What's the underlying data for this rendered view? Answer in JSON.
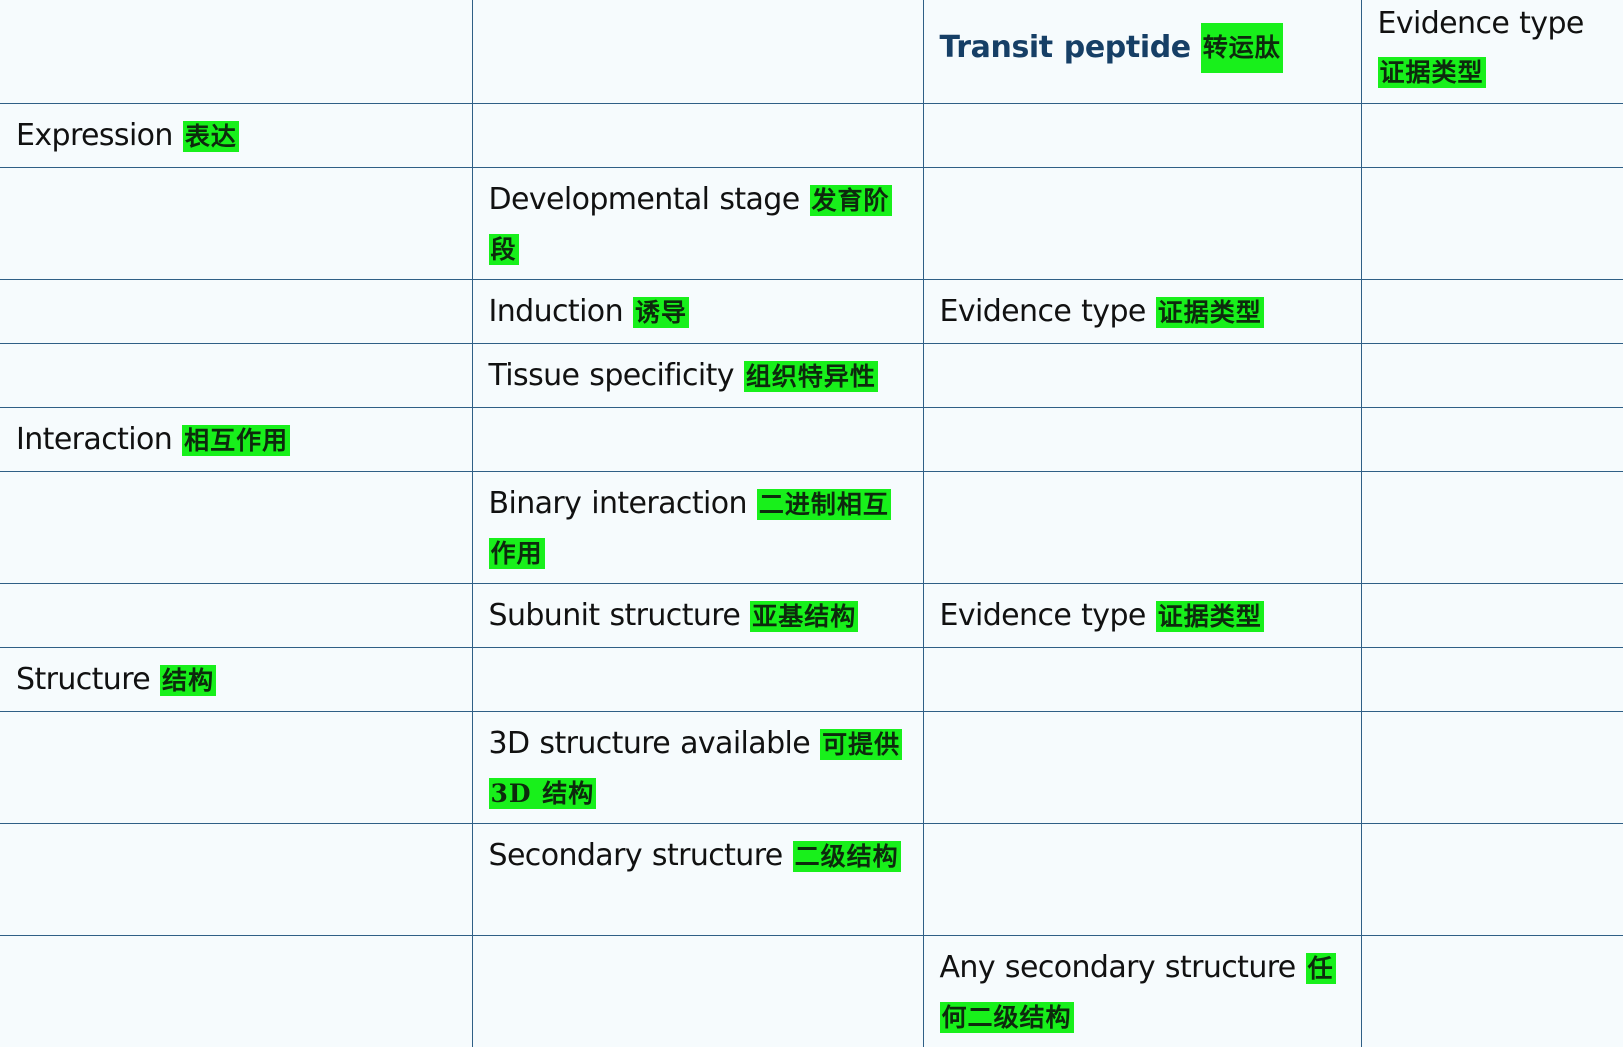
{
  "header": {
    "col3_en": "Transit peptide",
    "col3_zh": "转运肽",
    "col4_en": "Evidence type",
    "col4_zh": "证据类型"
  },
  "rows": {
    "expression": {
      "en": "Expression",
      "zh": "表达"
    },
    "developmental_stage": {
      "en": "Developmental stage",
      "zh": "发育阶段"
    },
    "induction": {
      "en": "Induction",
      "zh": "诱导"
    },
    "induction_evidence": {
      "en": "Evidence type",
      "zh": "证据类型"
    },
    "tissue_specificity": {
      "en": "Tissue specificity",
      "zh": "组织特异性"
    },
    "interaction": {
      "en": "Interaction",
      "zh": "相互作用"
    },
    "binary_interaction": {
      "en": "Binary interaction",
      "zh": "二进制相互作用"
    },
    "subunit_structure": {
      "en": "Subunit structure",
      "zh": "亚基结构"
    },
    "subunit_evidence": {
      "en": "Evidence type",
      "zh": "证据类型"
    },
    "structure": {
      "en": "Structure",
      "zh": "结构"
    },
    "structure_3d": {
      "en": "3D structure available",
      "zh": "可提供 3D 结构"
    },
    "secondary_structure": {
      "en": "Secondary structure",
      "zh": "二级结构"
    },
    "any_secondary_structure": {
      "en": "Any secondary structure",
      "zh": "任何二级结构"
    }
  },
  "colors": {
    "background": "#f6fbfd",
    "gridline": "#2f5f86",
    "header_text": "#163f66",
    "highlight": "#18f01b"
  }
}
